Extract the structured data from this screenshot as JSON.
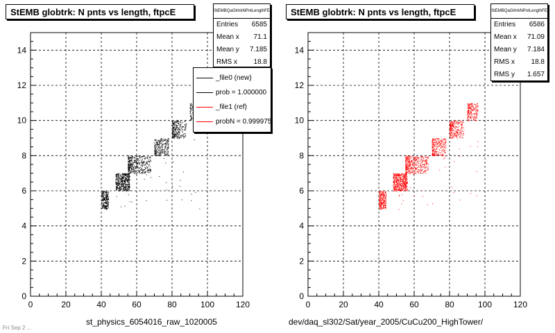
{
  "left_panel": {
    "title": "StEMB globtrk: N pnts vs length, ftpcE",
    "stats": {
      "header": "StEMBQaGlrtrkNPntLengthFE",
      "rows": [
        {
          "label": "Entries",
          "value": "6585"
        },
        {
          "label": "Mean x",
          "value": "71.1"
        },
        {
          "label": "Mean y",
          "value": "7.185"
        },
        {
          "label": "RMS x",
          "value": "18.8"
        }
      ]
    },
    "legend": [
      {
        "label": "_file0 (new)",
        "color": "#000000"
      },
      {
        "label": "prob = 1.000000",
        "color": "#000000"
      },
      {
        "label": "_file1 (ref)",
        "color": "#ff0000"
      },
      {
        "label": "probN = 0.999975",
        "color": "#ff0000"
      }
    ],
    "xlabel": "st_physics_6054016_raw_1020005"
  },
  "right_panel": {
    "title": "StEMB globtrk: N pnts vs length, ftpcE",
    "stats": {
      "header": "StEMBQaGlrtrkNPntLengthFE",
      "rows": [
        {
          "label": "Entries",
          "value": "6586"
        },
        {
          "label": "Mean x",
          "value": "71.09"
        },
        {
          "label": "Mean y",
          "value": "7.184"
        },
        {
          "label": "RMS x",
          "value": "18.8"
        },
        {
          "label": "RMS y",
          "value": "1.657"
        }
      ]
    },
    "xlabel": "dev/daq_sl302/Sat/year_2005/CuCu200_HighTower/"
  },
  "footer": "Fri Sep 2 ...",
  "chart_data": [
    {
      "type": "scatter",
      "title": "StEMB globtrk: N pnts vs length, ftpcE",
      "xlabel": "st_physics_6054016_raw_1020005",
      "ylabel": "",
      "xlim": [
        0,
        120
      ],
      "ylim": [
        0,
        15
      ],
      "xticks": [
        0,
        20,
        40,
        60,
        80,
        100,
        120
      ],
      "yticks": [
        0,
        2,
        4,
        6,
        8,
        10,
        12,
        14
      ],
      "grid": true,
      "legend_position": "top-right",
      "color": "#000000",
      "bands": [
        {
          "y": 5,
          "x_min": 40,
          "x_max": 44,
          "density": "high"
        },
        {
          "y": 6,
          "x_min": 48,
          "x_max": 56,
          "density": "high"
        },
        {
          "y": 7,
          "x_min": 55,
          "x_max": 68,
          "density": "medium"
        },
        {
          "y": 8,
          "x_min": 70,
          "x_max": 78,
          "density": "medium"
        },
        {
          "y": 9,
          "x_min": 80,
          "x_max": 88,
          "density": "medium"
        },
        {
          "y": 10,
          "x_min": 90,
          "x_max": 96,
          "density": "low"
        }
      ]
    },
    {
      "type": "scatter",
      "title": "StEMB globtrk: N pnts vs length, ftpcE",
      "xlabel": "dev/daq_sl302/Sat/year_2005/CuCu200_HighTower/",
      "ylabel": "",
      "xlim": [
        0,
        120
      ],
      "ylim": [
        0,
        15
      ],
      "xticks": [
        0,
        20,
        40,
        60,
        80,
        100,
        120
      ],
      "yticks": [
        0,
        2,
        4,
        6,
        8,
        10,
        12,
        14
      ],
      "grid": true,
      "color": "#ff0000",
      "bands": [
        {
          "y": 5,
          "x_min": 40,
          "x_max": 44,
          "density": "high"
        },
        {
          "y": 6,
          "x_min": 48,
          "x_max": 56,
          "density": "high"
        },
        {
          "y": 7,
          "x_min": 55,
          "x_max": 68,
          "density": "medium"
        },
        {
          "y": 8,
          "x_min": 70,
          "x_max": 78,
          "density": "medium"
        },
        {
          "y": 9,
          "x_min": 80,
          "x_max": 88,
          "density": "medium"
        },
        {
          "y": 10,
          "x_min": 90,
          "x_max": 96,
          "density": "medium"
        }
      ]
    }
  ]
}
